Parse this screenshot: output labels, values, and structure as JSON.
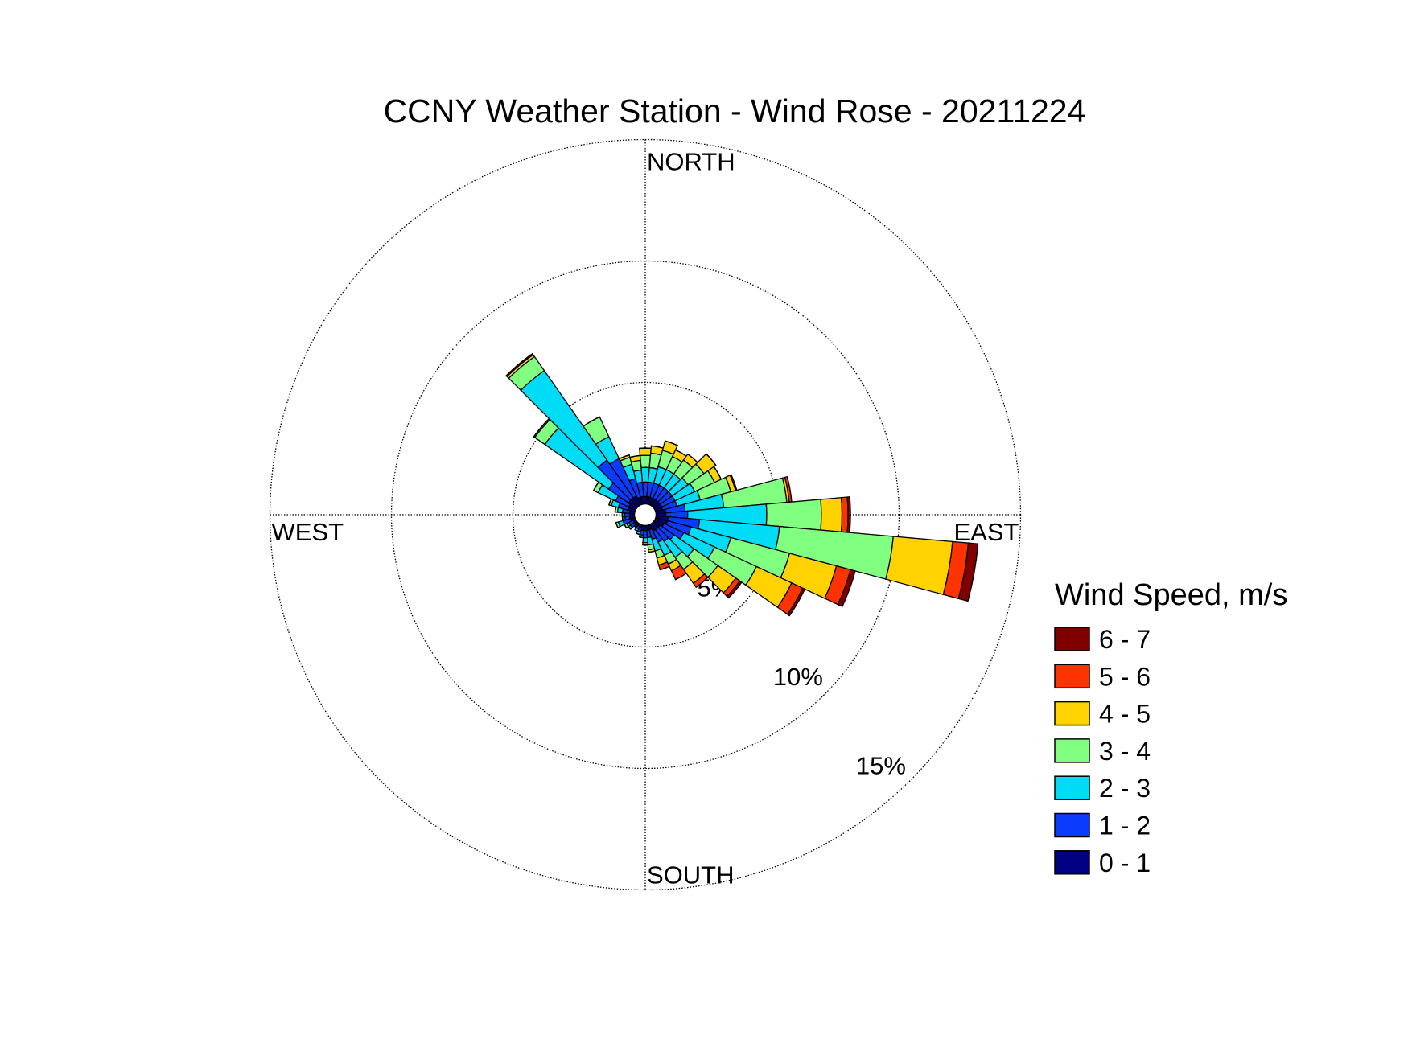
{
  "chart_data": {
    "type": "windrose",
    "title": "CCNY Weather Station - Wind Rose - 20211224",
    "compass": [
      "NORTH",
      "EAST",
      "SOUTH",
      "WEST"
    ],
    "legend_title": "Wind Speed, m/s",
    "angles": [
      0,
      10,
      20,
      30,
      40,
      50,
      60,
      70,
      80,
      90,
      100,
      110,
      120,
      130,
      140,
      150,
      160,
      170,
      180,
      190,
      200,
      210,
      220,
      230,
      240,
      250,
      260,
      270,
      280,
      290,
      300,
      310,
      320,
      330,
      340,
      350
    ],
    "rlim": [
      0,
      15
    ],
    "rticks": [
      {
        "value": 5,
        "label": "5%"
      },
      {
        "value": 10,
        "label": "10%"
      },
      {
        "value": 15,
        "label": "15%"
      }
    ],
    "series": [
      {
        "name": "0 - 1",
        "color": "#000080",
        "values": [
          0.3,
          0.3,
          0.3,
          0.3,
          0.3,
          0.3,
          0.3,
          0.3,
          0.4,
          0.4,
          0.5,
          0.5,
          0.4,
          0.3,
          0.3,
          0.3,
          0.2,
          0.2,
          0.2,
          0.2,
          0.1,
          0.1,
          0.1,
          0.1,
          0.1,
          0.2,
          0.2,
          0.2,
          0.2,
          0.3,
          0.3,
          0.4,
          0.4,
          0.4,
          0.3,
          0.3
        ]
      },
      {
        "name": "1 - 2",
        "color": "#0a3cff",
        "values": [
          0.6,
          0.6,
          0.6,
          0.6,
          0.6,
          0.6,
          0.6,
          0.6,
          0.8,
          0.9,
          1.3,
          1.0,
          0.9,
          0.7,
          0.6,
          0.5,
          0.4,
          0.3,
          0.3,
          0.2,
          0.2,
          0.1,
          0.1,
          0.2,
          0.2,
          0.3,
          0.2,
          0.2,
          0.3,
          0.4,
          0.6,
          1.0,
          1.9,
          1.7,
          0.8,
          0.6
        ]
      },
      {
        "name": "2 - 3",
        "color": "#00dcf5",
        "values": [
          0.6,
          0.6,
          0.7,
          0.7,
          0.7,
          0.8,
          0.9,
          1.0,
          1.6,
          3.25,
          3.3,
          1.7,
          1.4,
          1.0,
          0.8,
          0.6,
          0.5,
          0.3,
          0.2,
          0.1,
          0.1,
          0.1,
          0,
          0.1,
          0.1,
          0.2,
          0.1,
          0.1,
          0.2,
          0.3,
          0.8,
          3.2,
          4.5,
          1.0,
          0.6,
          0.5
        ]
      },
      {
        "name": "3 - 4",
        "color": "#80ff80",
        "values": [
          0.5,
          0.6,
          0.7,
          0.6,
          0.7,
          0.8,
          0.9,
          1.3,
          2.6,
          2.25,
          4.7,
          2.5,
          1.9,
          1.2,
          0.6,
          0.4,
          0.3,
          0.2,
          0.1,
          0,
          0,
          0,
          0,
          0,
          0.1,
          0.1,
          0,
          0,
          0.1,
          0.1,
          0.2,
          0.5,
          0.7,
          0.9,
          0.3,
          0.4
        ]
      },
      {
        "name": "4 - 5",
        "color": "#ffd200",
        "values": [
          0.3,
          0.3,
          0.4,
          0.3,
          0.3,
          0.6,
          0.3,
          0.2,
          0.1,
          0.85,
          2.45,
          2.0,
          1.6,
          0.9,
          0.7,
          0.3,
          0.3,
          0.1,
          0,
          0,
          0,
          0,
          0,
          0,
          0,
          0,
          0,
          0,
          0,
          0,
          0,
          0.05,
          0.1,
          0,
          0.1,
          0.2
        ]
      },
      {
        "name": "5 - 6",
        "color": "#ff3300",
        "values": [
          0,
          0,
          0,
          0,
          0,
          0,
          0,
          0.05,
          0.1,
          0.25,
          0.65,
          0.6,
          0.5,
          0.2,
          0.2,
          0.4,
          0.2,
          0,
          0,
          0,
          0,
          0,
          0,
          0,
          0,
          0,
          0,
          0,
          0,
          0,
          0,
          0,
          0,
          0,
          0,
          0
        ]
      },
      {
        "name": "6 - 7",
        "color": "#800000",
        "values": [
          0,
          0,
          0,
          0,
          0,
          0,
          0,
          0,
          0,
          0.1,
          0.4,
          0.2,
          0.1,
          0.1,
          0,
          0,
          0,
          0,
          0,
          0,
          0,
          0,
          0,
          0,
          0,
          0,
          0,
          0,
          0,
          0,
          0,
          0,
          0.05,
          0,
          0,
          0
        ]
      }
    ]
  }
}
